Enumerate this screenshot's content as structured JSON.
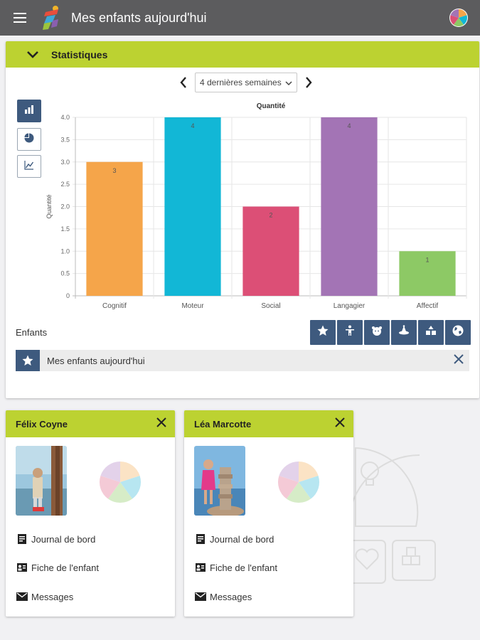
{
  "header": {
    "title": "Mes enfants aujourd'hui",
    "menu_icon": "hamburger-menu-icon",
    "logo_icon": "app-logo-icon",
    "right_icon": "color-wheel-icon"
  },
  "statistics": {
    "title": "Statistiques",
    "period_label": "4 dernières semaines",
    "chart_type_buttons": [
      "bar-chart-icon",
      "pie-chart-icon",
      "line-chart-icon"
    ],
    "chart_data": {
      "type": "bar",
      "title": "Quantité",
      "ylabel": "Quantité",
      "xlabel": "",
      "categories": [
        "Cognitif",
        "Moteur",
        "Social",
        "Langagier",
        "Affectif"
      ],
      "values": [
        3,
        4,
        2,
        4,
        1
      ],
      "colors": [
        "#f5a54a",
        "#12b7d6",
        "#dc4f76",
        "#a374b5",
        "#8dc965"
      ],
      "ylim": [
        0,
        4
      ],
      "yticks": [
        "0",
        "0.5",
        "1.0",
        "1.5",
        "2.0",
        "2.5",
        "3.0",
        "3.5",
        "4.0"
      ],
      "grid": true
    },
    "enfants_label": "Enfants",
    "filter_icons": [
      "star-icon",
      "person-icon",
      "baby-icon",
      "hat-icon",
      "blocks-icon",
      "globe-icon"
    ],
    "group": {
      "label": "Mes enfants aujourd'hui",
      "icon": "star-icon"
    }
  },
  "children": [
    {
      "name": "Félix Coyne",
      "links": [
        "Journal de bord",
        "Fiche de l'enfant",
        "Messages"
      ]
    },
    {
      "name": "Léa Marcotte",
      "links": [
        "Journal de bord",
        "Fiche de l'enfant",
        "Messages"
      ]
    }
  ],
  "colors": {
    "accent_green": "#bcd231",
    "topbar": "#5c5c5e",
    "button_blue": "#3e5a7e"
  }
}
